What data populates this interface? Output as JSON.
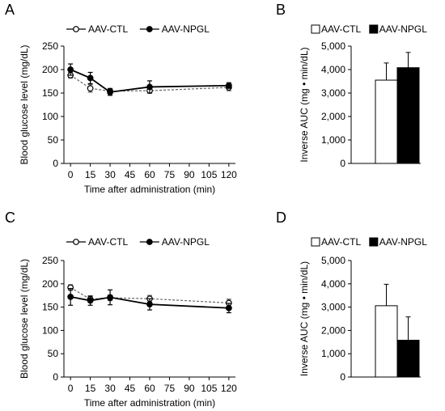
{
  "panels": [
    {
      "label": "A",
      "chart_data": {
        "type": "line",
        "title": "",
        "xlabel": "Time after administration (min)",
        "ylabel": "Blood glucose level (mg/dL)",
        "xlim": [
          -5,
          125
        ],
        "ylim": [
          0,
          250
        ],
        "xticks": [
          0,
          15,
          30,
          45,
          60,
          75,
          90,
          105,
          120
        ],
        "yticks": [
          0,
          50,
          100,
          150,
          200,
          250
        ],
        "legend": "top-left",
        "x": [
          0,
          15,
          30,
          60,
          120
        ],
        "series": [
          {
            "name": "AAV-CTL",
            "marker": "open-circle",
            "dash": true,
            "values": [
              188,
              160,
              154,
              155,
              162
            ],
            "errors": [
              6,
              8,
              6,
              5,
              7
            ]
          },
          {
            "name": "AAV-NPGL",
            "marker": "filled-circle",
            "dash": false,
            "values": [
              200,
              182,
              152,
              163,
              166
            ],
            "errors": [
              12,
              12,
              7,
              13,
              6
            ]
          }
        ]
      }
    },
    {
      "label": "B",
      "chart_data": {
        "type": "bar",
        "title": "",
        "xlabel": "",
        "ylabel": "Inverse AUC (mg • min/dL)",
        "ylim": [
          0,
          5000
        ],
        "yticks": [
          0,
          1000,
          2000,
          3000,
          4000,
          5000
        ],
        "ytick_labels": [
          "0",
          "1,000",
          "2,000",
          "3,000",
          "4,000",
          "5,000"
        ],
        "legend": "top",
        "categories": [
          "AAV-CTL",
          "AAV-NPGL"
        ],
        "series": [
          {
            "name": "AAV-CTL",
            "fill": "#ffffff",
            "value": 3550,
            "error": 730
          },
          {
            "name": "AAV-NPGL",
            "fill": "#000000",
            "value": 4080,
            "error": 650
          }
        ]
      }
    },
    {
      "label": "C",
      "chart_data": {
        "type": "line",
        "title": "",
        "xlabel": "Time after administration (min)",
        "ylabel": "Blood glucose level (mg/dL)",
        "xlim": [
          -5,
          125
        ],
        "ylim": [
          0,
          250
        ],
        "xticks": [
          0,
          15,
          30,
          45,
          60,
          75,
          90,
          105,
          120
        ],
        "yticks": [
          0,
          50,
          100,
          150,
          200,
          250
        ],
        "legend": "top-left",
        "x": [
          0,
          15,
          30,
          60,
          120
        ],
        "series": [
          {
            "name": "AAV-CTL",
            "marker": "open-circle",
            "dash": true,
            "values": [
              192,
              167,
              170,
              168,
              159
            ],
            "errors": [
              6,
              6,
              6,
              7,
              8
            ]
          },
          {
            "name": "AAV-NPGL",
            "marker": "filled-circle",
            "dash": false,
            "values": [
              172,
              164,
              171,
              156,
              148
            ],
            "errors": [
              18,
              10,
              16,
              12,
              10
            ]
          }
        ]
      }
    },
    {
      "label": "D",
      "chart_data": {
        "type": "bar",
        "title": "",
        "xlabel": "",
        "ylabel": "Inverse AUC (mg • min/dL)",
        "ylim": [
          0,
          5000
        ],
        "yticks": [
          0,
          1000,
          2000,
          3000,
          4000,
          5000
        ],
        "ytick_labels": [
          "0",
          "1,000",
          "2,000",
          "3,000",
          "4,000",
          "5,000"
        ],
        "legend": "top",
        "categories": [
          "AAV-CTL",
          "AAV-NPGL"
        ],
        "series": [
          {
            "name": "AAV-CTL",
            "fill": "#ffffff",
            "value": 3060,
            "error": 920
          },
          {
            "name": "AAV-NPGL",
            "fill": "#000000",
            "value": 1580,
            "error": 1000
          }
        ]
      }
    }
  ]
}
